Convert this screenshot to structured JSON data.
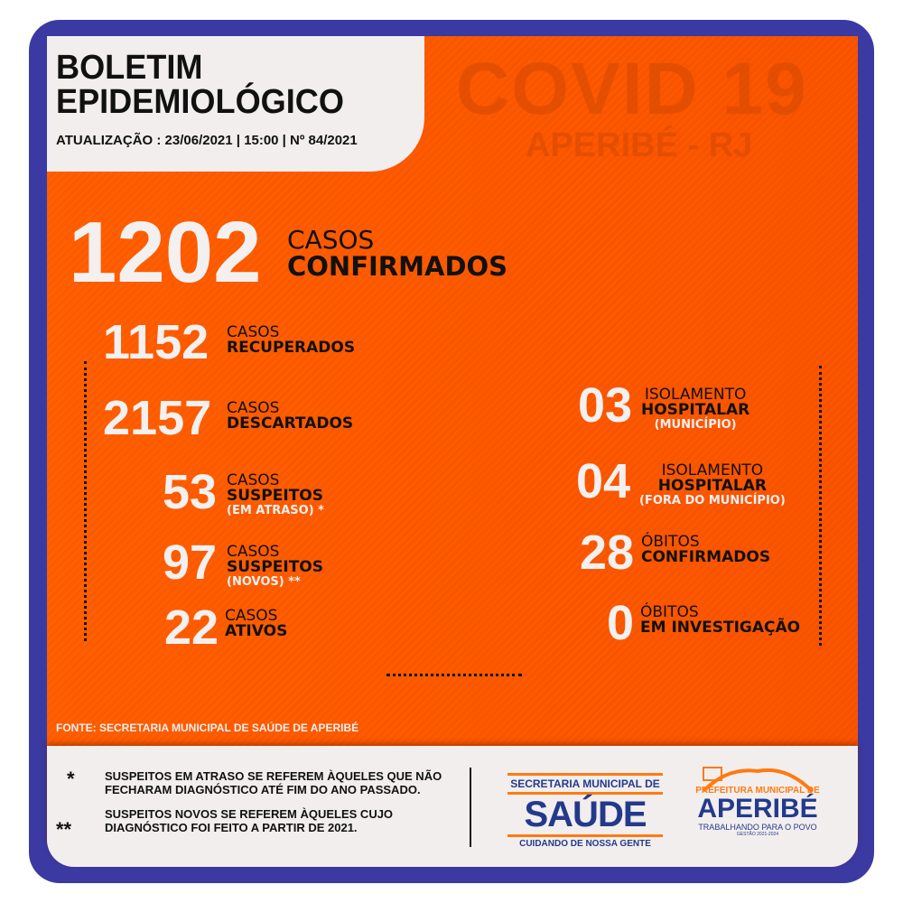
{
  "header": {
    "title_line1": "BOLETIM",
    "title_line2": "EPIDEMIOLÓGICO",
    "update": "ATUALIZAÇÃO : 23/06/2021  |  15:00  |  Nº 84/2021"
  },
  "watermark": {
    "line1": "COVID 19",
    "line2": "APERIBÉ - RJ"
  },
  "colors": {
    "frame": "#3a3aa2",
    "background": "#ff5c00",
    "panel": "#f2eeee",
    "brand_blue": "#233a8c",
    "brand_orange": "#ff7a10"
  },
  "stats": {
    "confirmados": {
      "value": "1202",
      "l1": "CASOS",
      "l2": "CONFIRMADOS"
    },
    "recuperados": {
      "value": "1152",
      "l1": "CASOS",
      "l2": "RECUPERADOS"
    },
    "descartados": {
      "value": "2157",
      "l1": "CASOS",
      "l2": "DESCARTADOS"
    },
    "suspeitos_atraso": {
      "value": "53",
      "l1": "CASOS",
      "l2": "SUSPEITOS",
      "l3": "(EM ATRASO) *"
    },
    "suspeitos_novos": {
      "value": "97",
      "l1": "CASOS",
      "l2": "SUSPEITOS",
      "l3": "(NOVOS) **"
    },
    "ativos": {
      "value": "22",
      "l1": "CASOS",
      "l2": "ATIVOS"
    },
    "isolamento_municipio": {
      "value": "03",
      "l1": "ISOLAMENTO",
      "l2": "HOSPITALAR",
      "l3": "(MUNICÍPIO)"
    },
    "isolamento_fora": {
      "value": "04",
      "l1": "ISOLAMENTO",
      "l2": "HOSPITALAR",
      "l3": "(FORA DO MUNICÍPIO)"
    },
    "obitos_confirmados": {
      "value": "28",
      "l1": "ÓBITOS",
      "l2": "CONFIRMADOS"
    },
    "obitos_investigacao": {
      "value": "0",
      "l1": "ÓBITOS",
      "l2": "EM INVESTIGAÇÃO"
    }
  },
  "source": "FONTE: SECRETARIA MUNICIPAL DE SAÚDE DE APERIBÉ",
  "notes": [
    {
      "marker": "*",
      "text": "SUSPEITOS EM ATRASO SE REFEREM ÀQUELES QUE NÃO FECHARAM DIAGNÓSTICO ATÉ FIM DO ANO PASSADO."
    },
    {
      "marker": "**",
      "text": "SUSPEITOS NOVOS SE REFEREM ÀQUELES CUJO DIAGNÓSTICO FOI FEITO A PARTIR DE 2021."
    }
  ],
  "logos": {
    "saude": {
      "top": "SECRETARIA MUNICIPAL DE",
      "main": "SAÚDE",
      "bottom": "CUIDANDO DE NOSSA GENTE"
    },
    "aperibe": {
      "top": "PREFEITURA MUNICIPAL DE",
      "main": "APERIBÉ",
      "slogan": "TRABALHANDO PARA O POVO",
      "term": "GESTÃO 2021-2024"
    }
  }
}
